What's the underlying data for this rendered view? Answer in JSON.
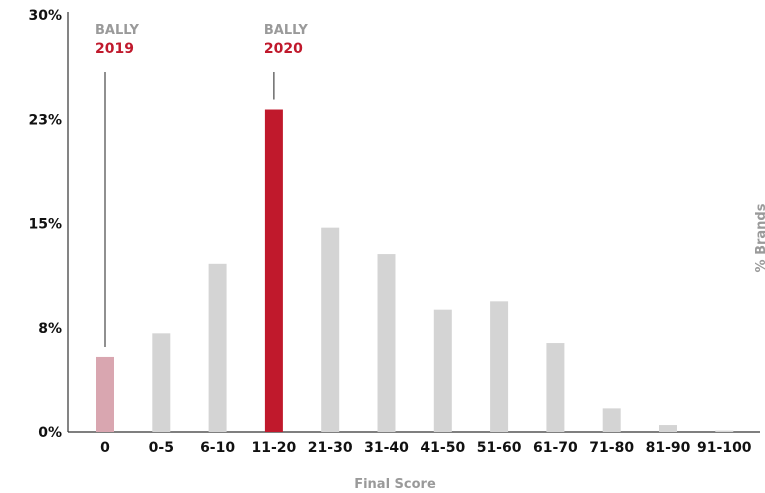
{
  "chart_data": {
    "type": "bar",
    "xlabel": "Final Score",
    "ylabel": "% Brands",
    "ylim": [
      0,
      30
    ],
    "y_ticks": [
      {
        "value": 0,
        "label": "0%"
      },
      {
        "value": 7.5,
        "label": "8%"
      },
      {
        "value": 15,
        "label": "15%"
      },
      {
        "value": 22.5,
        "label": "23%"
      },
      {
        "value": 30,
        "label": "30%"
      }
    ],
    "categories": [
      "0",
      "0-5",
      "6-10",
      "11-20",
      "21-30",
      "31-40",
      "41-50",
      "51-60",
      "61-70",
      "71-80",
      "81-90",
      "91-100"
    ],
    "values": [
      5.4,
      7.1,
      12.1,
      23.2,
      14.7,
      12.8,
      8.8,
      9.4,
      6.4,
      1.7,
      0.5,
      0.1
    ],
    "highlights": [
      {
        "category": "0",
        "brand": "BALLY",
        "year": "2019",
        "color": "#d9a6b0"
      },
      {
        "category": "11-20",
        "brand": "BALLY",
        "year": "2020",
        "color": "#c0192c"
      }
    ],
    "default_color": "#d4d4d4",
    "axis_color": "#333333",
    "grid": false
  }
}
